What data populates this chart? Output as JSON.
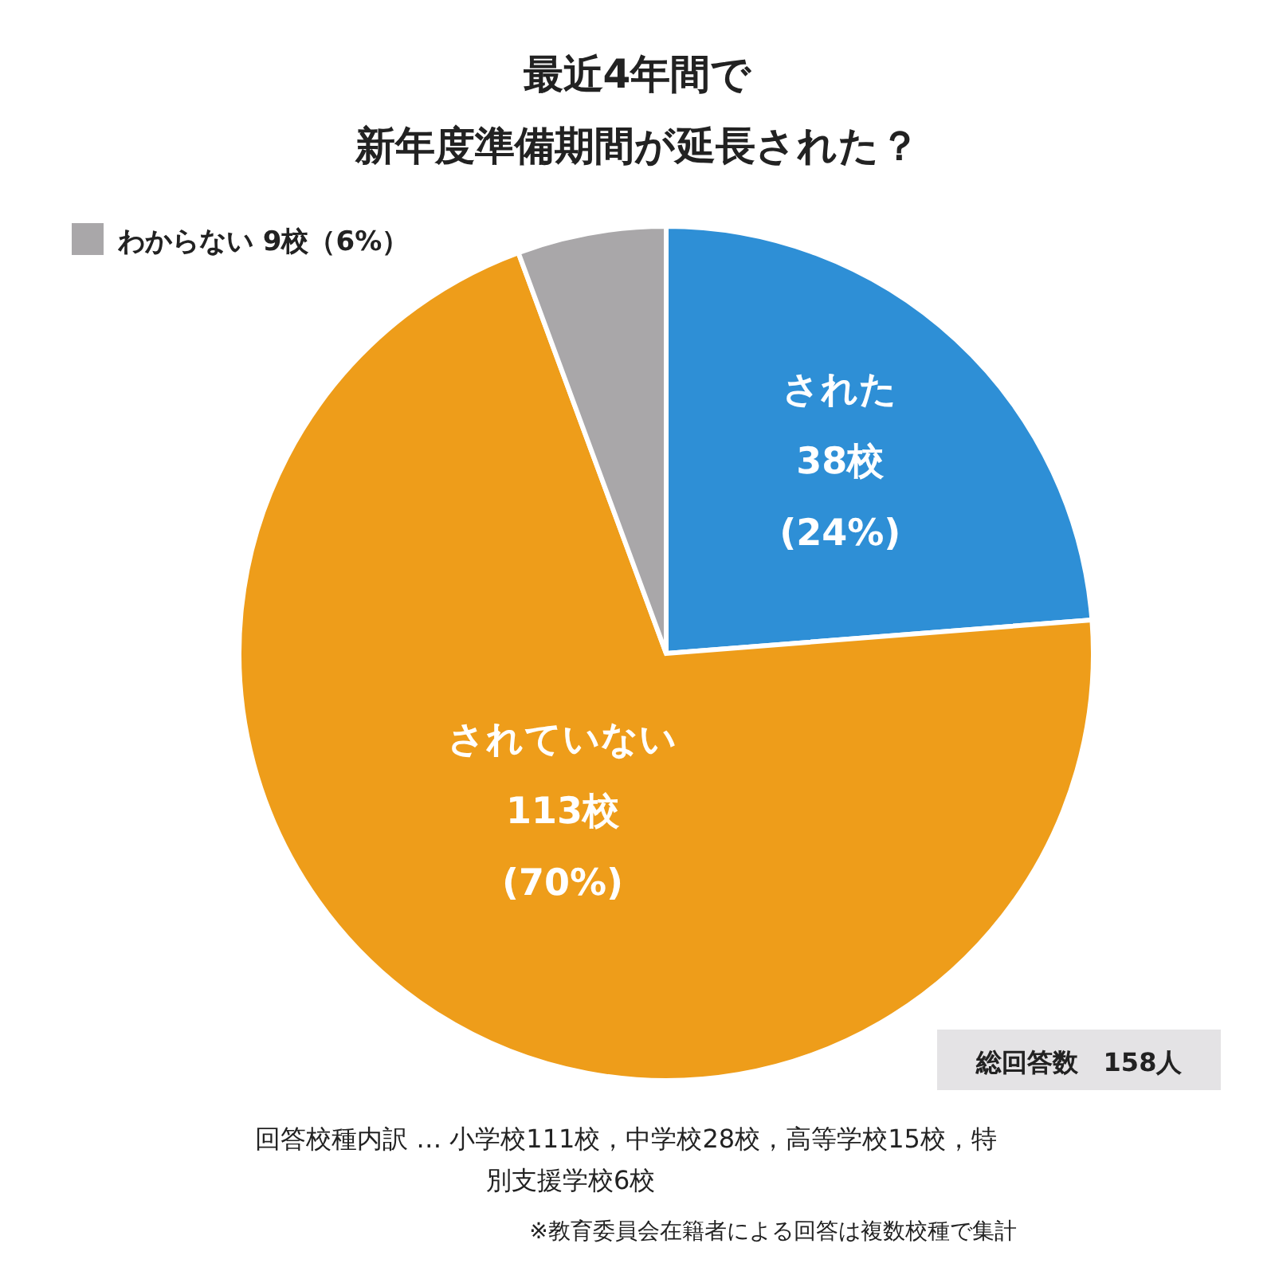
{
  "chart_data": {
    "type": "pie",
    "title": "最近4年間で",
    "subtitle": "新年度準備期間が延長された？",
    "categories": [
      "された",
      "されていない",
      "わからない"
    ],
    "values": [
      38,
      113,
      9
    ],
    "colors": [
      "#2e8fd6",
      "#ee9d1a",
      "#a9a7a9"
    ],
    "value_labels": [
      "38校\n(24%)",
      "113校\n(70%)",
      "9校（6%）"
    ],
    "annotations": [
      "総回答数　158人",
      "回答校種内訳 … 小学校111校，中学校28校，高等学校15校，特別支援学校6校",
      "※教育委員会在籍者による回答は複数校種で集計"
    ]
  }
}
